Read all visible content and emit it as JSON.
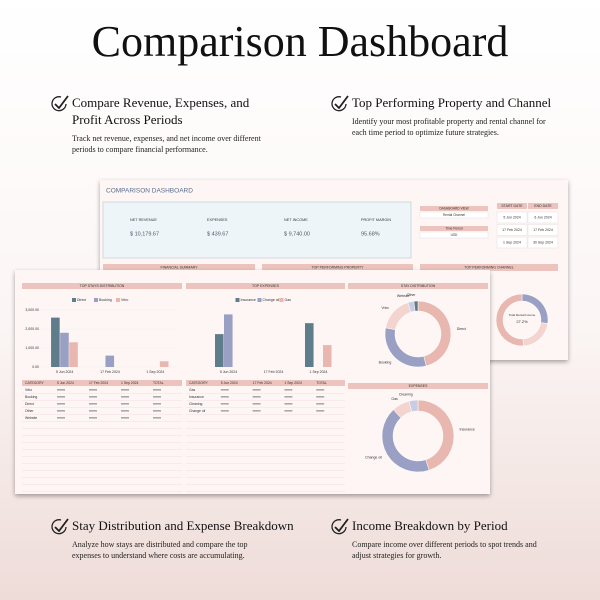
{
  "header": {
    "title": "Comparison Dashboard"
  },
  "features": [
    {
      "title_lines": [
        "Compare Revenue, Expenses, and",
        "Profit Across Periods"
      ],
      "description_lines": [
        "Track net revenue, expenses, and net income over different",
        "periods to compare financial performance."
      ]
    },
    {
      "title_lines": [
        "Top Performing Property and Channel"
      ],
      "description_lines": [
        "Identify your most profitable property and rental channel for",
        "each time period to optimize future strategies."
      ]
    },
    {
      "title_lines": [
        "Stay Distribution and Expense Breakdown"
      ],
      "description_lines": [
        "Analyze how stays are distributed and compare the top",
        "expenses to understand where costs are accumulating."
      ]
    },
    {
      "title_lines": [
        "Income Breakdown by Period"
      ],
      "description_lines": [
        "Compare income over different periods to spot trends and",
        "adjust strategies for growth."
      ]
    }
  ],
  "back_panel": {
    "title": "COMPARISON DASHBOARD",
    "kpis": [
      {
        "label": "NET REVENUE",
        "value": "$ 10,179.67"
      },
      {
        "label": "EXPENSES",
        "value": "$ 439.67"
      },
      {
        "label": "NET INCOME",
        "value": "$ 9,740.00"
      },
      {
        "label": "PROFIT MARGIN",
        "value": "95.68%"
      }
    ],
    "controls": [
      {
        "label": "DASHBOARD VIEW",
        "value": "Rental Channel"
      },
      {
        "label": "Time Period",
        "value": "USD"
      }
    ],
    "period_header": [
      "START DATE",
      "END DATE"
    ],
    "periods": [
      [
        "5 Jun 2024",
        "6 Jun 2024"
      ],
      [
        "17 Feb 2024",
        "17 Feb 2024"
      ],
      [
        "1 Sep 2024",
        "30 Sep 2024"
      ]
    ],
    "sections": [
      "FINANCIAL SUMMARY",
      "TOP PERFORMING PROPERTY",
      "TOP PERFORMING CHANNEL"
    ],
    "donut_center": [
      "Total Rental Income",
      "27.2%"
    ]
  },
  "chart_data": [
    {
      "type": "bar",
      "title": "TOP STAYS DISTRIBUTION",
      "categories": [
        "5 Jun 2024",
        "17 Feb 2024",
        "1 Sep 2024"
      ],
      "series": [
        {
          "name": "Direct",
          "color": "#5f7c8a",
          "values": [
            2600,
            0,
            0
          ]
        },
        {
          "name": "Booking",
          "color": "#9aa0c4",
          "values": [
            1800,
            600,
            0
          ]
        },
        {
          "name": "Vrbo",
          "color": "#e8b8b0",
          "values": [
            1300,
            0,
            300
          ]
        }
      ],
      "ylim": [
        0,
        3000
      ],
      "yticks": [
        {
          "value": 0,
          "label": "0.00"
        },
        {
          "value": 1000,
          "label": "1,000.00"
        },
        {
          "value": 2000,
          "label": "2,000.00"
        },
        {
          "value": 3000,
          "label": "3,000.00"
        }
      ],
      "table": {
        "header": [
          "CATEGORY",
          "5 Jun 2024",
          "17 Feb 2024",
          "1 Sep 2024",
          "TOTAL"
        ],
        "rows": [
          "Vrbo",
          "Booking",
          "Direct",
          "Other",
          "Website"
        ]
      }
    },
    {
      "type": "bar",
      "title": "TOP EXPENSES",
      "categories": [
        "5 Jun 2024",
        "17 Feb 2024",
        "1 Sep 2024"
      ],
      "series": [
        {
          "name": "Insurance",
          "color": "#5f7c8a",
          "values": [
            75,
            0,
            100
          ]
        },
        {
          "name": "Change oil",
          "color": "#9aa0c4",
          "values": [
            120,
            0,
            0
          ]
        },
        {
          "name": "Gas",
          "color": "#e8b8b0",
          "values": [
            0,
            0,
            50
          ]
        }
      ],
      "ylim": [
        0,
        130
      ],
      "table": {
        "header": [
          "CATEGORY",
          "5 Jun 2024",
          "17 Feb 2024",
          "1 Sep 2024",
          "TOTAL"
        ],
        "rows": [
          "Gas",
          "Insurance",
          "Cleaning",
          "Change oil"
        ]
      }
    },
    {
      "type": "pie",
      "title": "STAY DISTRIBUTION",
      "categories": [
        "Direct",
        "Booking",
        "Vrbo",
        "Website",
        "Other"
      ],
      "values": [
        46,
        32,
        17,
        3,
        2
      ],
      "colors": [
        "#e8b8b0",
        "#9aa0c4",
        "#f3d4cf",
        "#c9cde4",
        "#5f7c8a"
      ]
    },
    {
      "type": "pie",
      "title": "EXPENSES",
      "categories": [
        "Insurance",
        "Change oil",
        "Gas",
        "Cleaning"
      ],
      "values": [
        45,
        43,
        8,
        4
      ],
      "colors": [
        "#e8b8b0",
        "#9aa0c4",
        "#f3d4cf",
        "#c9cde4"
      ]
    },
    {
      "type": "pie",
      "title": "TOP PERFORMING CHANNEL",
      "categories": [
        "Direct",
        "Booking",
        "Vrbo"
      ],
      "values": [
        27.2,
        22,
        50.8
      ],
      "colors": [
        "#9aa0c4",
        "#f3d4cf",
        "#e8b8b0"
      ]
    }
  ]
}
